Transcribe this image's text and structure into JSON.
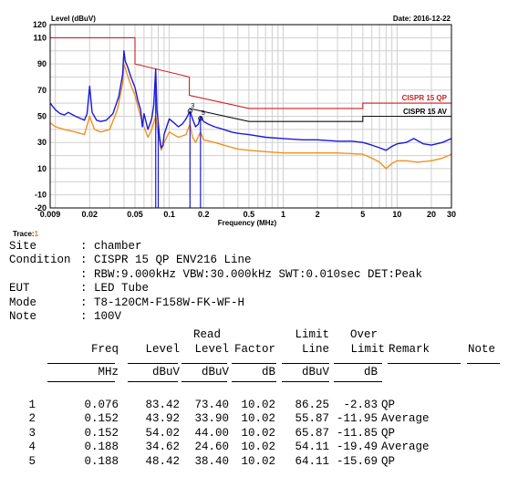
{
  "chart_data": {
    "type": "line",
    "title": "Level (dBuV)",
    "date": "Date: 2016-12-22",
    "xlabel": "Frequency (MHz)",
    "ylabel": "Level (dBuV)",
    "x_scale": "log",
    "xlim": [
      0.009,
      30
    ],
    "ylim": [
      -20,
      120
    ],
    "grid": true,
    "x_ticks": [
      {
        "value": 0.009,
        "label": "0.009"
      },
      {
        "value": 0.02,
        "label": "0.02"
      },
      {
        "value": 0.05,
        "label": "0.05"
      },
      {
        "value": 0.1,
        "label": "0.1"
      },
      {
        "value": 0.2,
        "label": "0.2"
      },
      {
        "value": 0.5,
        "label": "0.5"
      },
      {
        "value": 1,
        "label": "1"
      },
      {
        "value": 2,
        "label": "2"
      },
      {
        "value": 5,
        "label": "5"
      },
      {
        "value": 10,
        "label": "10"
      },
      {
        "value": 20,
        "label": "20"
      },
      {
        "value": 30,
        "label": "30"
      }
    ],
    "y_ticks": [
      {
        "value": 120,
        "label": "120"
      },
      {
        "value": 110,
        "label": "110"
      },
      {
        "value": 90,
        "label": "90"
      },
      {
        "value": 70,
        "label": "70"
      },
      {
        "value": 50,
        "label": "50"
      },
      {
        "value": 30,
        "label": "30"
      },
      {
        "value": 10,
        "label": "10"
      },
      {
        "value": -10,
        "label": "-10"
      },
      {
        "value": -20,
        "label": "-20"
      }
    ],
    "limit_lines": [
      {
        "name": "CISPR 15 QP",
        "color": "#cc2222",
        "points": [
          [
            0.009,
            110
          ],
          [
            0.05,
            110
          ],
          [
            0.05,
            90
          ],
          [
            0.15,
            80
          ],
          [
            0.15,
            66
          ],
          [
            0.5,
            56
          ],
          [
            5,
            56
          ],
          [
            5,
            60
          ],
          [
            30,
            60
          ]
        ]
      },
      {
        "name": "CISPR 15 AV",
        "color": "#111111",
        "points": [
          [
            0.15,
            56
          ],
          [
            0.5,
            46
          ],
          [
            5,
            46
          ],
          [
            5,
            50
          ],
          [
            30,
            50
          ]
        ]
      }
    ],
    "series": [
      {
        "color": "#1a1adc",
        "points": [
          [
            0.009,
            60
          ],
          [
            0.01,
            55
          ],
          [
            0.011,
            52
          ],
          [
            0.012,
            51
          ],
          [
            0.013,
            53
          ],
          [
            0.015,
            50
          ],
          [
            0.017,
            48
          ],
          [
            0.018,
            47
          ],
          [
            0.019,
            52
          ],
          [
            0.02,
            73
          ],
          [
            0.021,
            53
          ],
          [
            0.023,
            47
          ],
          [
            0.025,
            46
          ],
          [
            0.028,
            47
          ],
          [
            0.032,
            52
          ],
          [
            0.036,
            65
          ],
          [
            0.039,
            82
          ],
          [
            0.04,
            100
          ],
          [
            0.041,
            92
          ],
          [
            0.043,
            88
          ],
          [
            0.046,
            80
          ],
          [
            0.05,
            72
          ],
          [
            0.053,
            62
          ],
          [
            0.056,
            55
          ],
          [
            0.058,
            42
          ],
          [
            0.06,
            52
          ],
          [
            0.065,
            40
          ],
          [
            0.07,
            48
          ],
          [
            0.073,
            58
          ],
          [
            0.076,
            86
          ],
          [
            0.078,
            55
          ],
          [
            0.08,
            45
          ],
          [
            0.082,
            35
          ],
          [
            0.085,
            26
          ],
          [
            0.088,
            28
          ],
          [
            0.09,
            36
          ],
          [
            0.1,
            48
          ],
          [
            0.11,
            45
          ],
          [
            0.12,
            42
          ],
          [
            0.13,
            44
          ],
          [
            0.14,
            48
          ],
          [
            0.152,
            54
          ],
          [
            0.16,
            48
          ],
          [
            0.17,
            42
          ],
          [
            0.18,
            44
          ],
          [
            0.188,
            50
          ],
          [
            0.2,
            46
          ],
          [
            0.22,
            44
          ],
          [
            0.25,
            42
          ],
          [
            0.3,
            40
          ],
          [
            0.35,
            38
          ],
          [
            0.4,
            37
          ],
          [
            0.5,
            36
          ],
          [
            0.7,
            34
          ],
          [
            1,
            33
          ],
          [
            1.5,
            32
          ],
          [
            2,
            32
          ],
          [
            3,
            31
          ],
          [
            4,
            31
          ],
          [
            5,
            30
          ],
          [
            6,
            28
          ],
          [
            7,
            26
          ],
          [
            8,
            24
          ],
          [
            9,
            27
          ],
          [
            10,
            29
          ],
          [
            12,
            30
          ],
          [
            14,
            33
          ],
          [
            17,
            29
          ],
          [
            20,
            28
          ],
          [
            25,
            30
          ],
          [
            30,
            33
          ]
        ]
      },
      {
        "color": "#f39020",
        "points": [
          [
            0.009,
            45
          ],
          [
            0.01,
            42
          ],
          [
            0.012,
            40
          ],
          [
            0.015,
            38
          ],
          [
            0.018,
            36
          ],
          [
            0.02,
            50
          ],
          [
            0.022,
            40
          ],
          [
            0.025,
            38
          ],
          [
            0.03,
            40
          ],
          [
            0.035,
            55
          ],
          [
            0.039,
            75
          ],
          [
            0.04,
            90
          ],
          [
            0.042,
            84
          ],
          [
            0.045,
            76
          ],
          [
            0.05,
            66
          ],
          [
            0.055,
            52
          ],
          [
            0.06,
            42
          ],
          [
            0.065,
            34
          ],
          [
            0.07,
            40
          ],
          [
            0.076,
            50
          ],
          [
            0.08,
            36
          ],
          [
            0.085,
            24
          ],
          [
            0.09,
            30
          ],
          [
            0.1,
            38
          ],
          [
            0.12,
            34
          ],
          [
            0.14,
            36
          ],
          [
            0.152,
            44
          ],
          [
            0.16,
            34
          ],
          [
            0.17,
            30
          ],
          [
            0.188,
            38
          ],
          [
            0.2,
            32
          ],
          [
            0.25,
            30
          ],
          [
            0.3,
            28
          ],
          [
            0.4,
            25
          ],
          [
            0.5,
            24
          ],
          [
            0.7,
            23
          ],
          [
            1,
            22
          ],
          [
            2,
            22
          ],
          [
            3,
            22
          ],
          [
            5,
            21
          ],
          [
            6,
            18
          ],
          [
            7,
            15
          ],
          [
            8,
            10
          ],
          [
            9,
            14
          ],
          [
            10,
            16
          ],
          [
            12,
            16
          ],
          [
            15,
            15
          ],
          [
            20,
            16
          ],
          [
            25,
            18
          ],
          [
            30,
            21
          ]
        ]
      }
    ],
    "spikes": [
      {
        "x": 0.076,
        "y_top": 86,
        "y_bottom": -20,
        "color": "#1a1adc"
      },
      {
        "x": 0.08,
        "y_top": 45,
        "y_bottom": -20,
        "color": "#1a1adc"
      },
      {
        "x": 0.152,
        "y_top": 54,
        "y_bottom": -20,
        "color": "#1a1adc"
      },
      {
        "x": 0.188,
        "y_top": 50,
        "y_bottom": -20,
        "color": "#1a1adc"
      }
    ],
    "markers": [
      {
        "x": 0.152,
        "y": 54,
        "label": "3"
      },
      {
        "x": 0.188,
        "y": 48.4,
        "label": "5"
      }
    ]
  },
  "trace": {
    "label": "Trace:",
    "number": "1"
  },
  "info": [
    {
      "key": "Site",
      "value": ": chamber"
    },
    {
      "key": "Condition",
      "value": ": CISPR 15 QP ENV216 Line"
    },
    {
      "key": "",
      "value": ": RBW:9.000kHz VBW:30.000kHz SWT:0.010sec DET:Peak"
    },
    {
      "key": "EUT",
      "value": ": LED Tube"
    },
    {
      "key": "Mode",
      "value": ": T8-120CM-F158W-FK-WF-H"
    },
    {
      "key": "Note",
      "value": ": 100V"
    }
  ],
  "table": {
    "head_top": [
      "",
      "",
      "Read",
      "",
      "Limit",
      "Over",
      "",
      ""
    ],
    "head_main": [
      "Freq",
      "Level",
      "Level",
      "Factor",
      "Line",
      "Limit",
      "Remark",
      "Note"
    ],
    "units": [
      "MHz",
      "dBuV",
      "dBuV",
      "dB",
      "dBuV",
      "dB",
      "",
      ""
    ],
    "rows": [
      {
        "n": "1",
        "freq": "0.076",
        "level": "83.42",
        "read": "73.40",
        "factor": "10.02",
        "limit": "86.25",
        "over": "-2.83",
        "remark": "QP"
      },
      {
        "n": "2",
        "freq": "0.152",
        "level": "43.92",
        "read": "33.90",
        "factor": "10.02",
        "limit": "55.87",
        "over": "-11.95",
        "remark": "Average"
      },
      {
        "n": "3",
        "freq": "0.152",
        "level": "54.02",
        "read": "44.00",
        "factor": "10.02",
        "limit": "65.87",
        "over": "-11.85",
        "remark": "QP"
      },
      {
        "n": "4",
        "freq": "0.188",
        "level": "34.62",
        "read": "24.60",
        "factor": "10.02",
        "limit": "54.11",
        "over": "-19.49",
        "remark": "Average"
      },
      {
        "n": "5",
        "freq": "0.188",
        "level": "48.42",
        "read": "38.40",
        "factor": "10.02",
        "limit": "64.11",
        "over": "-15.69",
        "remark": "QP"
      }
    ]
  }
}
